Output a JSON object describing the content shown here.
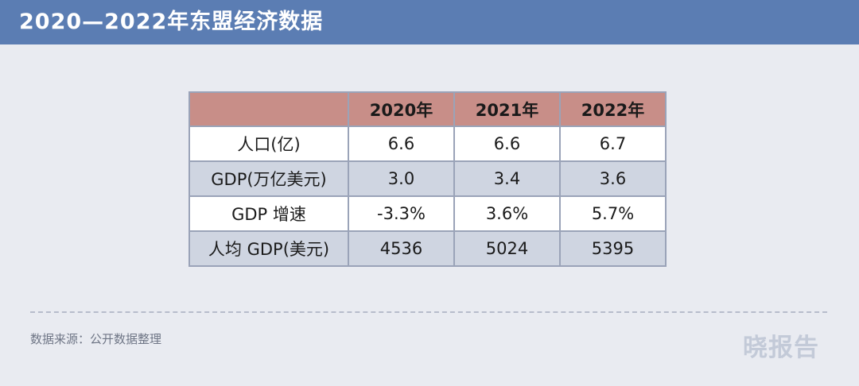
{
  "header": {
    "title": "2020—2022年东盟经济数据"
  },
  "chart_data": {
    "type": "table",
    "columns": [
      "",
      "2020年",
      "2021年",
      "2022年"
    ],
    "rows": [
      {
        "label": "人口(亿)",
        "values": [
          "6.6",
          "6.6",
          "6.7"
        ]
      },
      {
        "label": "GDP(万亿美元)",
        "values": [
          "3.0",
          "3.4",
          "3.6"
        ]
      },
      {
        "label": "GDP 增速",
        "values": [
          "-3.3%",
          "3.6%",
          "5.7%"
        ]
      },
      {
        "label": "人均 GDP(美元)",
        "values": [
          "4536",
          "5024",
          "5395"
        ]
      }
    ]
  },
  "colors": {
    "header_bg": "#5b7db3",
    "table_header_bg": "#c88e88",
    "row_shade": "#cfd5e1",
    "page_bg": "#e9ebf1"
  },
  "footer": {
    "source": "数据来源：公开数据整理",
    "logo": "晓报告"
  }
}
